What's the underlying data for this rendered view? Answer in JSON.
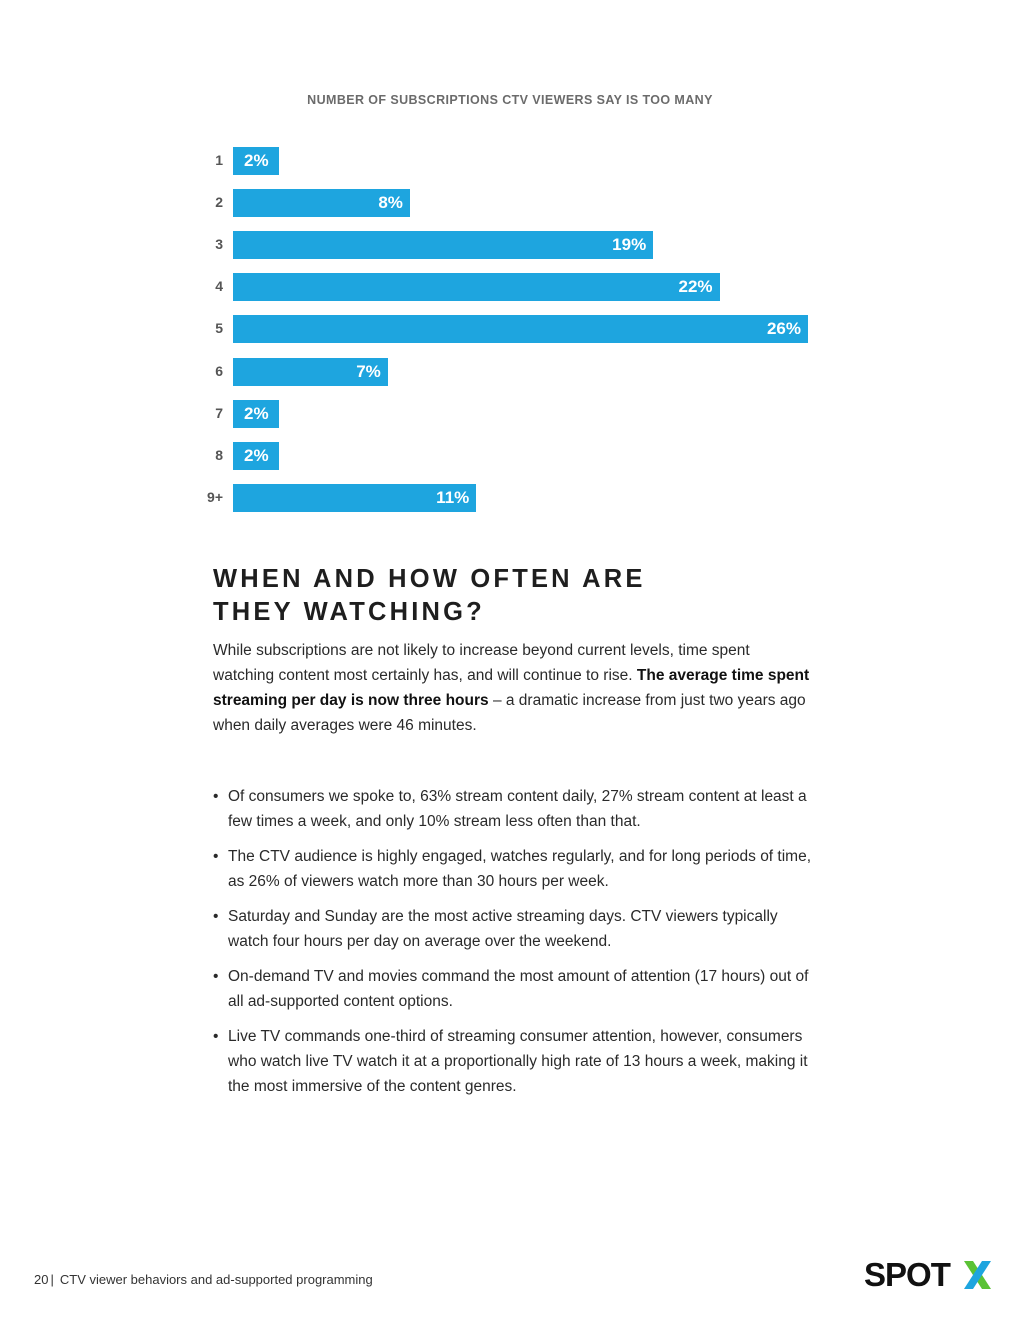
{
  "chart_data": {
    "type": "bar",
    "orientation": "horizontal",
    "title": "NUMBER OF SUBSCRIPTIONS CTV VIEWERS SAY IS TOO MANY",
    "categories": [
      "1",
      "2",
      "3",
      "4",
      "5",
      "6",
      "7",
      "8",
      "9+"
    ],
    "values": [
      2,
      8,
      19,
      22,
      26,
      7,
      2,
      2,
      11
    ],
    "value_labels": [
      "2%",
      "8%",
      "19%",
      "22%",
      "26%",
      "7%",
      "2%",
      "2%",
      "11%"
    ],
    "unit": "%",
    "xlim": [
      0,
      26
    ],
    "grid": false,
    "legend": "none",
    "bar_color": "#1ea5df"
  },
  "section": {
    "heading_line1": "WHEN AND HOW OFTEN ARE",
    "heading_line2": "THEY WATCHING?",
    "intro_part1": "While subscriptions are not likely to increase beyond current levels, time spent watching content most certainly has, and will continue to rise.",
    "intro_bold": "The average time spent streaming per day is now three hours",
    "intro_part2": "– a dramatic increase from just two years ago when daily averages were 46 minutes."
  },
  "bullets": [
    "Of consumers we spoke to, 63% stream content daily, 27% stream content at least a few times a week, and only 10% stream less often than that.",
    "The CTV audience is highly engaged, watches regularly, and for long periods of time, as 26% of viewers watch more than 30 hours per week.",
    "Saturday and Sunday are the most active streaming days. CTV viewers typically watch four hours per day on average over the weekend.",
    "On-demand TV and movies command the most amount of attention (17 hours) out of all ad-supported content options.",
    "Live TV commands one-third of streaming consumer attention, however, consumers who watch live TV watch it at a proportionally high rate of 13 hours a week, making it the most immersive of the content genres."
  ],
  "bullet_symbol": "•",
  "footer": {
    "page_number": "20",
    "separator": "|",
    "text": "CTV viewer behaviors and ad-supported programming"
  },
  "logo": {
    "text_main": "SPOT",
    "text_accent": "X",
    "color_main": "#111111",
    "color_accent_1": "#5bc236",
    "color_accent_2": "#1ea5df"
  }
}
